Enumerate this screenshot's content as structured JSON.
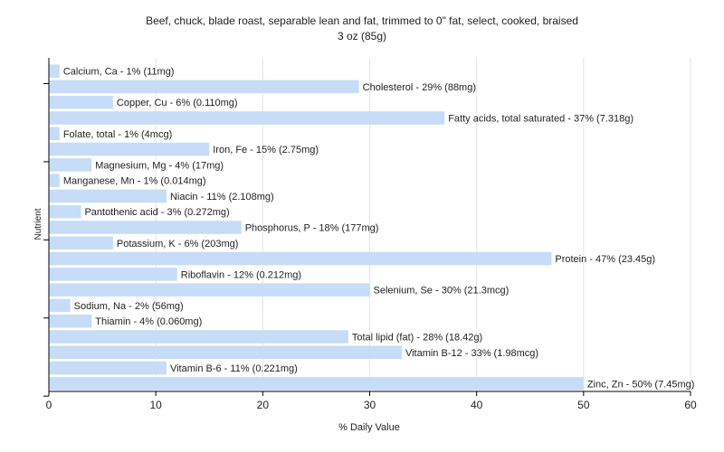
{
  "chart_data": {
    "type": "bar",
    "orientation": "horizontal",
    "title": "Beef, chuck, blade roast, separable lean and fat, trimmed to 0\" fat, select, cooked, braised",
    "subtitle": "3 oz (85g)",
    "xlabel": "% Daily Value",
    "ylabel": "Nutrient",
    "xlim": [
      0,
      60
    ],
    "xticks": [
      0,
      10,
      20,
      30,
      40,
      50,
      60
    ],
    "grid": true,
    "bar_color": "#c6dcf7",
    "categories": [
      "Calcium, Ca",
      "Cholesterol",
      "Copper, Cu",
      "Fatty acids, total saturated",
      "Folate, total",
      "Iron, Fe",
      "Magnesium, Mg",
      "Manganese, Mn",
      "Niacin",
      "Pantothenic acid",
      "Phosphorus, P",
      "Potassium, K",
      "Protein",
      "Riboflavin",
      "Selenium, Se",
      "Sodium, Na",
      "Thiamin",
      "Total lipid (fat)",
      "Vitamin B-12",
      "Vitamin B-6",
      "Zinc, Zn"
    ],
    "values": [
      1,
      29,
      6,
      37,
      1,
      15,
      4,
      1,
      11,
      3,
      18,
      6,
      47,
      12,
      30,
      2,
      4,
      28,
      33,
      11,
      50
    ],
    "labels": [
      "Calcium, Ca - 1% (11mg)",
      "Cholesterol - 29% (88mg)",
      "Copper, Cu - 6% (0.110mg)",
      "Fatty acids, total saturated - 37% (7.318g)",
      "Folate, total - 1% (4mcg)",
      "Iron, Fe - 15% (2.75mg)",
      "Magnesium, Mg - 4% (17mg)",
      "Manganese, Mn - 1% (0.014mg)",
      "Niacin - 11% (2.108mg)",
      "Pantothenic acid - 3% (0.272mg)",
      "Phosphorus, P - 18% (177mg)",
      "Potassium, K - 6% (203mg)",
      "Protein - 47% (23.45g)",
      "Riboflavin - 12% (0.212mg)",
      "Selenium, Se - 30% (21.3mcg)",
      "Sodium, Na - 2% (56mg)",
      "Thiamin - 4% (0.060mg)",
      "Total lipid (fat) - 28% (18.42g)",
      "Vitamin B-12 - 33% (1.98mcg)",
      "Vitamin B-6 - 11% (0.221mg)",
      "Zinc, Zn - 50% (7.45mg)"
    ]
  }
}
